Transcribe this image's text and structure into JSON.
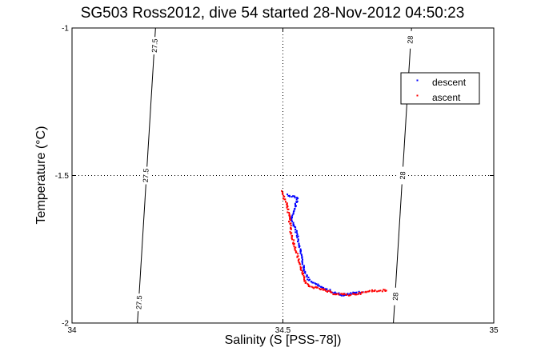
{
  "chart_data": {
    "type": "scatter",
    "title": "SG503 Ross2012, dive 54 started 28-Nov-2012 04:50:23",
    "xlabel": "Salinity (S [PSS-78])",
    "ylabel": "Temperature (°C)",
    "xlim": [
      34,
      35
    ],
    "ylim": [
      -2,
      -1
    ],
    "xticks": [
      34,
      34.5,
      35
    ],
    "yticks": [
      -2,
      -1.5,
      -1
    ],
    "xtick_labels": [
      "34",
      "34.5",
      "35"
    ],
    "ytick_labels": [
      "-2",
      "-1.5",
      "-1"
    ],
    "grid": true,
    "legend": {
      "placement": "top-right"
    },
    "density_contours": [
      {
        "label": "27.5",
        "points": [
          [
            34.198,
            -1.0
          ],
          [
            34.155,
            -2.0
          ]
        ]
      },
      {
        "label": "28",
        "points": [
          [
            34.805,
            -1.0
          ],
          [
            34.762,
            -2.0
          ]
        ]
      }
    ],
    "contour_labels": [
      {
        "text": "27.5",
        "x": 34.196,
        "y": -1.06
      },
      {
        "text": "27.5",
        "x": 34.175,
        "y": -1.5
      },
      {
        "text": "27.5",
        "x": 34.159,
        "y": -1.93
      },
      {
        "text": "28",
        "x": 34.802,
        "y": -1.04
      },
      {
        "text": "28",
        "x": 34.784,
        "y": -1.5
      },
      {
        "text": "28",
        "x": 34.767,
        "y": -1.91
      }
    ],
    "series": [
      {
        "name": "descent",
        "color": "#0000ff",
        "anchors": [
          [
            34.51,
            -1.565
          ],
          [
            34.52,
            -1.57
          ],
          [
            34.535,
            -1.575
          ],
          [
            34.52,
            -1.65
          ],
          [
            34.53,
            -1.68
          ],
          [
            34.54,
            -1.74
          ],
          [
            34.55,
            -1.82
          ],
          [
            34.56,
            -1.85
          ],
          [
            34.58,
            -1.87
          ],
          [
            34.6,
            -1.885
          ],
          [
            34.62,
            -1.895
          ],
          [
            34.64,
            -1.905
          ],
          [
            34.66,
            -1.9
          ],
          [
            34.69,
            -1.895
          ]
        ]
      },
      {
        "name": "ascent",
        "color": "#ff0000",
        "anchors": [
          [
            34.497,
            -1.555
          ],
          [
            34.5,
            -1.565
          ],
          [
            34.51,
            -1.6
          ],
          [
            34.515,
            -1.64
          ],
          [
            34.52,
            -1.7
          ],
          [
            34.53,
            -1.75
          ],
          [
            34.54,
            -1.8
          ],
          [
            34.55,
            -1.85
          ],
          [
            34.56,
            -1.875
          ],
          [
            34.59,
            -1.885
          ],
          [
            34.62,
            -1.9
          ],
          [
            34.655,
            -1.905
          ],
          [
            34.68,
            -1.9
          ],
          [
            34.715,
            -1.89
          ],
          [
            34.745,
            -1.89
          ]
        ]
      }
    ]
  }
}
